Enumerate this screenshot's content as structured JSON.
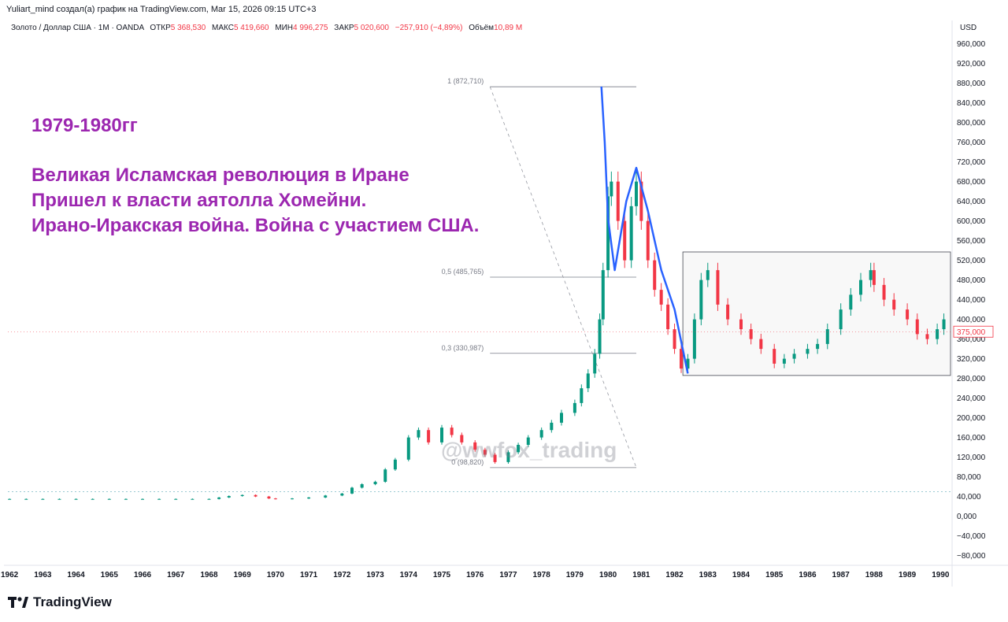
{
  "header": {
    "caption": "Yuliart_mind создал(а) график на TradingView.com, Mar 15, 2026 09:15 UTC+3",
    "symbol": "Золото / Доллар США · 1M · OANDA",
    "open_label": "ОТКР",
    "open_value": "5 368,530",
    "high_label": "МАКС",
    "high_value": "5 419,660",
    "low_label": "МИН",
    "low_value": "4 996,275",
    "close_label": "ЗАКР",
    "close_value": "5 020,600",
    "change_value": "−257,910 (−4,89%)",
    "volume_label": "Объём",
    "volume_value": "10,89 М",
    "currency": "USD"
  },
  "annotation": {
    "title": "1979-1980гг",
    "line1": "Великая Исламская революция в Иране",
    "line2": "Пришел к власти аятолла Хомейни.",
    "line3": "Ирано-Иракская война. Война с участием США."
  },
  "watermark": "@wwfox_trading",
  "brand": "TradingView",
  "colors": {
    "up": "#089981",
    "down": "#f23645",
    "annotation": "#9c27b0",
    "trend": "#2962ff",
    "price_label": "#f23645"
  },
  "chart_data": {
    "type": "candlestick",
    "title": "Золото / Доллар США · 1M · OANDA",
    "y_tick_labels": [
      "960,000",
      "920,000",
      "880,000",
      "840,000",
      "800,000",
      "760,000",
      "720,000",
      "680,000",
      "640,000",
      "600,000",
      "560,000",
      "520,000",
      "480,000",
      "440,000",
      "400,000",
      "360,000",
      "320,000",
      "280,000",
      "240,000",
      "200,000",
      "160,000",
      "120,000",
      "80,000",
      "40,000",
      "0,000",
      "−40,000",
      "−80,000"
    ],
    "y_ticks": [
      960,
      920,
      880,
      840,
      800,
      760,
      720,
      680,
      640,
      600,
      560,
      520,
      480,
      440,
      400,
      360,
      320,
      280,
      240,
      200,
      160,
      120,
      80,
      40,
      0,
      -40,
      -80
    ],
    "ylim": [
      -95,
      985
    ],
    "x_tick_labels": [
      "1962",
      "1963",
      "1964",
      "1965",
      "1966",
      "1967",
      "1968",
      "1969",
      "1970",
      "1971",
      "1972",
      "1973",
      "1974",
      "1975",
      "1976",
      "1977",
      "1978",
      "1979",
      "1980",
      "1981",
      "1982",
      "1983",
      "1984",
      "1985",
      "1986",
      "1987",
      "1988",
      "1989",
      "1990"
    ],
    "xlim": [
      1961.95,
      1990.3
    ],
    "last_price_label": "375,000",
    "last_price": 375,
    "dotted_level": 50,
    "fib_levels": [
      {
        "label": "1 (872,710)",
        "value": 872.71
      },
      {
        "label": "0,5 (485,765)",
        "value": 485.765
      },
      {
        "label": "0,3 (330,987)",
        "value": 330.987
      },
      {
        "label": "0 (98,820)",
        "value": 98.82
      }
    ],
    "fib_x_range": [
      1976.45,
      1980.85
    ],
    "range_box": {
      "x": [
        1982.25,
        1990.3
      ],
      "y": [
        286,
        537
      ]
    },
    "trend_line": [
      [
        1979.8,
        873
      ],
      [
        1979.9,
        760
      ],
      [
        1980.0,
        605
      ],
      [
        1980.2,
        500
      ],
      [
        1980.55,
        640
      ],
      [
        1980.85,
        708
      ],
      [
        1981.2,
        620
      ],
      [
        1981.6,
        500
      ],
      [
        1982.0,
        420
      ],
      [
        1982.4,
        290
      ]
    ],
    "series": [
      {
        "x": [
          1962,
          1962.5,
          1963,
          1963.5,
          1964,
          1964.5,
          1965,
          1965.5,
          1966,
          1966.5,
          1967,
          1967.5,
          1968,
          1968.3,
          1968.6,
          1969,
          1969.4,
          1969.8,
          1970,
          1970.5,
          1971,
          1971.5,
          1972,
          1972.3,
          1972.6,
          1973,
          1973.3,
          1973.6,
          1974,
          1974.3,
          1974.6,
          1975,
          1975.3,
          1975.6,
          1976,
          1976.3,
          1976.6,
          1977,
          1977.3,
          1977.6,
          1978,
          1978.3,
          1978.6,
          1979,
          1979.2,
          1979.4,
          1979.6,
          1979.75,
          1979.85,
          1980,
          1980.1,
          1980.3,
          1980.5,
          1980.7,
          1980.85,
          1981,
          1981.2,
          1981.4,
          1981.6,
          1981.8,
          1982,
          1982.2,
          1982.4,
          1982.6,
          1982.8,
          1983,
          1983.3,
          1983.6,
          1984,
          1984.3,
          1984.6,
          1985,
          1985.3,
          1985.6,
          1986,
          1986.3,
          1986.6,
          1987,
          1987.3,
          1987.6,
          1987.9,
          1988,
          1988.3,
          1988.6,
          1989,
          1989.3,
          1989.6,
          1989.9,
          1990.1
        ],
        "y": [
          35,
          35,
          35,
          35,
          35,
          35,
          35,
          35,
          35,
          35,
          35,
          35,
          35,
          38,
          41,
          43,
          40,
          36,
          35,
          36,
          38,
          42,
          46,
          58,
          65,
          70,
          95,
          115,
          160,
          175,
          150,
          180,
          165,
          150,
          135,
          125,
          110,
          130,
          145,
          160,
          175,
          190,
          210,
          230,
          260,
          290,
          330,
          400,
          500,
          650,
          680,
          600,
          520,
          630,
          680,
          600,
          520,
          460,
          430,
          380,
          340,
          300,
          320,
          400,
          480,
          500,
          430,
          400,
          380,
          360,
          340,
          310,
          320,
          330,
          340,
          350,
          380,
          420,
          450,
          480,
          500,
          470,
          440,
          420,
          400,
          370,
          360,
          380,
          400
        ]
      }
    ]
  }
}
